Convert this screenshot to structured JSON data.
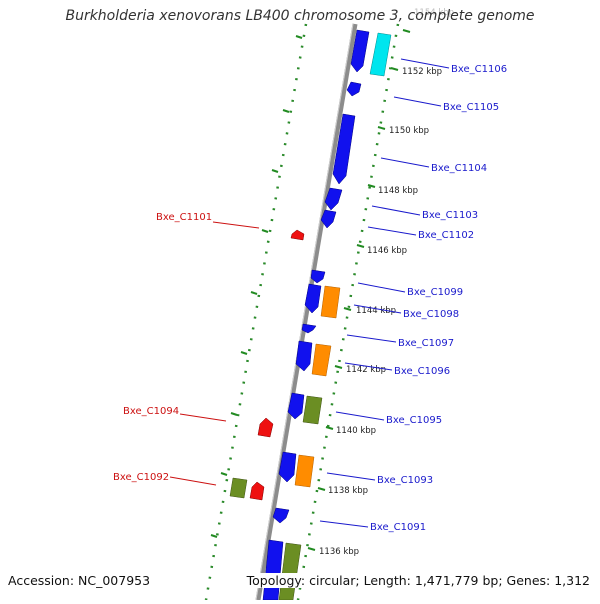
{
  "title": "Burkholderia xenovorans LB400 chromosome 3, complete genome",
  "footer": {
    "accession": "Accession: NC_007953",
    "topology": "Topology: circular; Length: 1,471,779 bp; Genes: 1,312"
  },
  "colors": {
    "backbone": "#8c8c8c",
    "forward_gene": "#1111ee",
    "reverse_gene": "#ee1111",
    "orange_feature": "#ff8c00",
    "olive_feature": "#6b8e23",
    "cyan_feature": "#00e5ee",
    "forward_label": "#1a1acc",
    "reverse_label": "#cc1111",
    "tick": "#228b22"
  },
  "scale_labels": [
    {
      "text": "1154 kbp",
      "kbp": 1154
    },
    {
      "text": "1152 kbp",
      "kbp": 1152
    },
    {
      "text": "1150 kbp",
      "kbp": 1150
    },
    {
      "text": "1148 kbp",
      "kbp": 1148
    },
    {
      "text": "1146 kbp",
      "kbp": 1146
    },
    {
      "text": "1144 kbp",
      "kbp": 1144
    },
    {
      "text": "1142 kbp",
      "kbp": 1142
    },
    {
      "text": "1140 kbp",
      "kbp": 1140
    },
    {
      "text": "1138 kbp",
      "kbp": 1138
    },
    {
      "text": "1136 kbp",
      "kbp": 1136
    }
  ],
  "genes_forward": [
    {
      "label": "Bxe_C1106"
    },
    {
      "label": "Bxe_C1105"
    },
    {
      "label": "Bxe_C1104"
    },
    {
      "label": "Bxe_C1103"
    },
    {
      "label": "Bxe_C1102"
    },
    {
      "label": "Bxe_C1099"
    },
    {
      "label": "Bxe_C1098"
    },
    {
      "label": "Bxe_C1097"
    },
    {
      "label": "Bxe_C1096"
    },
    {
      "label": "Bxe_C1095"
    },
    {
      "label": "Bxe_C1093"
    },
    {
      "label": "Bxe_C1091"
    }
  ],
  "genes_reverse": [
    {
      "label": "Bxe_C1101"
    },
    {
      "label": "Bxe_C1094"
    },
    {
      "label": "Bxe_C1092"
    }
  ]
}
